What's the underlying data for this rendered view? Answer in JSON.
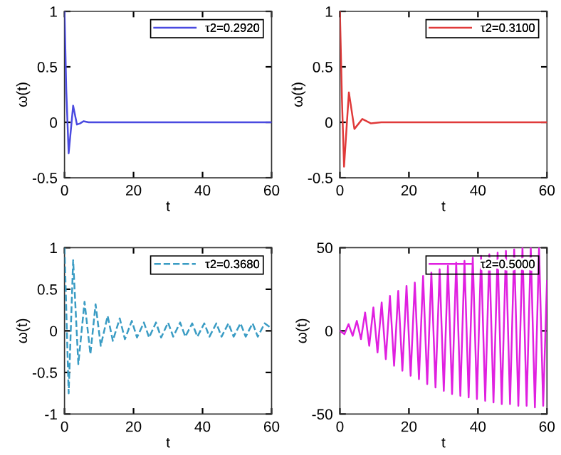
{
  "chart_data": [
    {
      "type": "line",
      "xlabel": "t",
      "ylabel": "ω(t)",
      "xlim": [
        0,
        60
      ],
      "ylim": [
        -0.5,
        1
      ],
      "xticks": [
        0,
        20,
        40,
        60
      ],
      "yticks": [
        -0.5,
        0,
        0.5,
        1
      ],
      "legend": "top right",
      "line_style": "solid",
      "series": [
        {
          "name": "τ2=0.2920",
          "color": "#4a4ae0",
          "x": [
            0,
            0.5,
            1.2,
            2.5,
            3.6,
            4.5,
            5.5,
            7,
            10,
            60
          ],
          "values": [
            1,
            0.3,
            -0.28,
            0.15,
            -0.02,
            -0.01,
            0.01,
            0,
            0,
            0
          ]
        }
      ]
    },
    {
      "type": "line",
      "xlabel": "t",
      "ylabel": "ω(t)",
      "xlim": [
        0,
        60
      ],
      "ylim": [
        -0.5,
        1
      ],
      "xticks": [
        0,
        20,
        40,
        60
      ],
      "yticks": [
        -0.5,
        0,
        0.5,
        1
      ],
      "legend": "top right",
      "line_style": "solid",
      "series": [
        {
          "name": "τ2=0.3100",
          "color": "#e03a3a",
          "x": [
            0,
            0.6,
            1.2,
            2.6,
            4.2,
            6.5,
            9,
            12,
            60
          ],
          "values": [
            1,
            0.2,
            -0.4,
            0.27,
            -0.06,
            0.03,
            -0.01,
            0,
            0
          ]
        }
      ]
    },
    {
      "type": "line",
      "xlabel": "t",
      "ylabel": "ω(t)",
      "xlim": [
        0,
        60
      ],
      "ylim": [
        -1,
        1
      ],
      "xticks": [
        0,
        20,
        40,
        60
      ],
      "yticks": [
        -1,
        -0.5,
        0,
        0.5,
        1
      ],
      "legend": "top right",
      "line_style": "dashed",
      "series": [
        {
          "name": "τ2=0.3680",
          "color": "#3a9cc4",
          "x": [
            0,
            1.2,
            2.5,
            4,
            5.8,
            7.5,
            9,
            10.5,
            12.5,
            14,
            16,
            17.5,
            19.5,
            21,
            23,
            24.5,
            26.5,
            28,
            30,
            31.5,
            33.5,
            35,
            37,
            38.5,
            40.5,
            42,
            44,
            45.5,
            47.5,
            49,
            51,
            52.5,
            54.5,
            56,
            58,
            60
          ],
          "values": [
            1,
            -0.75,
            0.85,
            -0.4,
            0.35,
            -0.28,
            0.32,
            -0.18,
            0.18,
            -0.12,
            0.15,
            -0.1,
            0.12,
            -0.08,
            0.1,
            -0.08,
            0.1,
            -0.08,
            0.1,
            -0.07,
            0.1,
            -0.07,
            0.09,
            -0.07,
            0.09,
            -0.07,
            0.09,
            -0.07,
            0.09,
            -0.07,
            0.09,
            -0.07,
            0.09,
            -0.07,
            0.09,
            0.03
          ]
        }
      ]
    },
    {
      "type": "line",
      "xlabel": "t",
      "ylabel": "ω(t)",
      "xlim": [
        0,
        60
      ],
      "ylim": [
        -50,
        50
      ],
      "xticks": [
        0,
        20,
        40,
        60
      ],
      "yticks": [
        -50,
        0,
        50
      ],
      "legend": "top right",
      "line_style": "solid",
      "series": [
        {
          "name": "τ2=0.5000",
          "color": "#e020e0",
          "x": [
            0,
            1.3,
            2.5,
            3.7,
            4.9,
            6.1,
            7.3,
            8.5,
            9.7,
            10.9,
            12.1,
            13.3,
            14.5,
            15.7,
            16.9,
            18.1,
            19.3,
            20.5,
            21.7,
            22.9,
            24.1,
            25.3,
            26.5,
            27.7,
            28.9,
            30.1,
            31.3,
            32.5,
            33.7,
            34.9,
            36.1,
            37.3,
            38.5,
            39.7,
            40.9,
            42.1,
            43.3,
            44.5,
            45.7,
            46.9,
            48.1,
            49.3,
            50.5,
            51.7,
            52.9,
            54.1,
            55.3,
            56.5,
            57.7,
            58.9,
            60
          ],
          "values": [
            0,
            -2,
            4,
            -3,
            6,
            -5,
            11,
            -9,
            14,
            -13,
            17,
            -17,
            21,
            -21,
            24,
            -24,
            27,
            -27,
            29,
            -29,
            33,
            -32,
            35,
            -34,
            37,
            -36,
            39,
            -38,
            41,
            -39,
            42,
            -40,
            44,
            -41,
            45,
            -42,
            46,
            -43,
            47,
            -44,
            48,
            -44,
            49,
            -45,
            50,
            -45,
            50,
            -46,
            50,
            -45,
            30
          ]
        }
      ]
    }
  ]
}
